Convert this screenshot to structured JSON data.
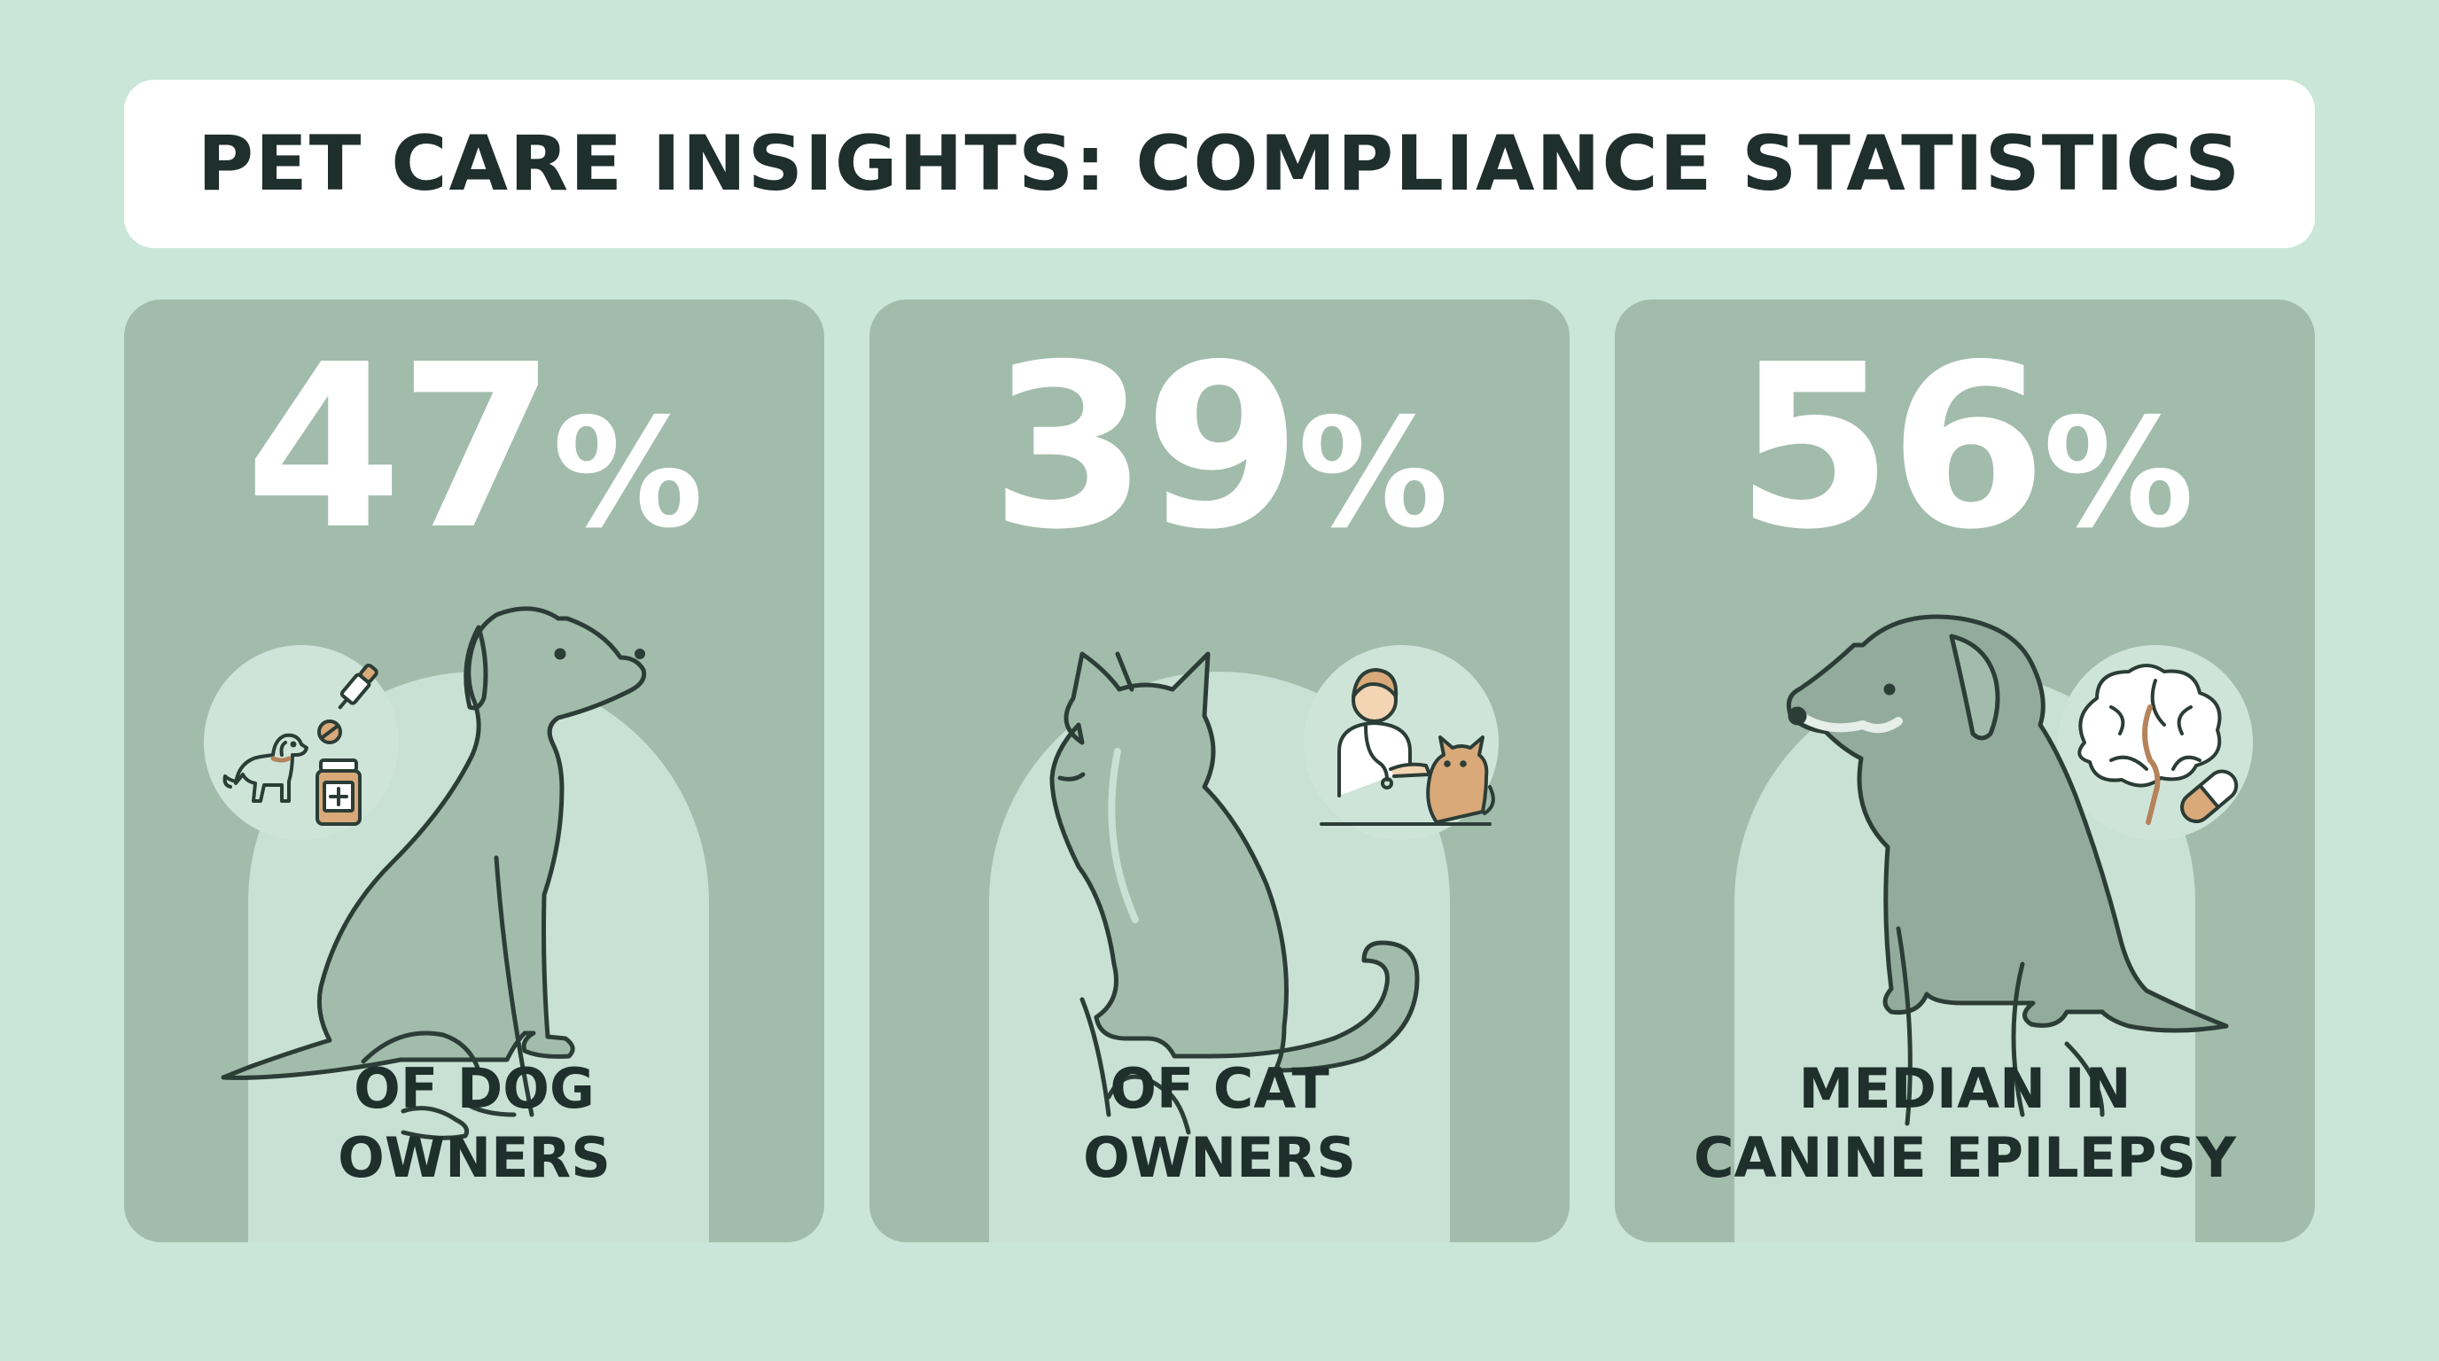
{
  "title": "PET CARE INSIGHTS: COMPLIANCE STATISTICS",
  "colors": {
    "background": "#c9e6d8",
    "card": "#a2bcab",
    "arch": "#c8e1d4",
    "stat_text": "#ffffff",
    "dark_text": "#1f2f2b",
    "accent_tan": "#d9a97a"
  },
  "cards": [
    {
      "value": "47",
      "unit": "%",
      "caption_line1": "OF DOG",
      "caption_line2": "OWNERS",
      "main_icon": "sitting-dog-icon",
      "badge_icon": "dog-medication-icon"
    },
    {
      "value": "39",
      "unit": "%",
      "caption_line1": "OF CAT",
      "caption_line2": "OWNERS",
      "main_icon": "sitting-cat-icon",
      "badge_icon": "vet-with-cat-icon"
    },
    {
      "value": "56",
      "unit": "%",
      "caption_line1": "MEDIAN IN",
      "caption_line2": "CANINE EPILEPSY",
      "main_icon": "sitting-dog-icon",
      "badge_icon": "brain-capsule-icon"
    }
  ]
}
